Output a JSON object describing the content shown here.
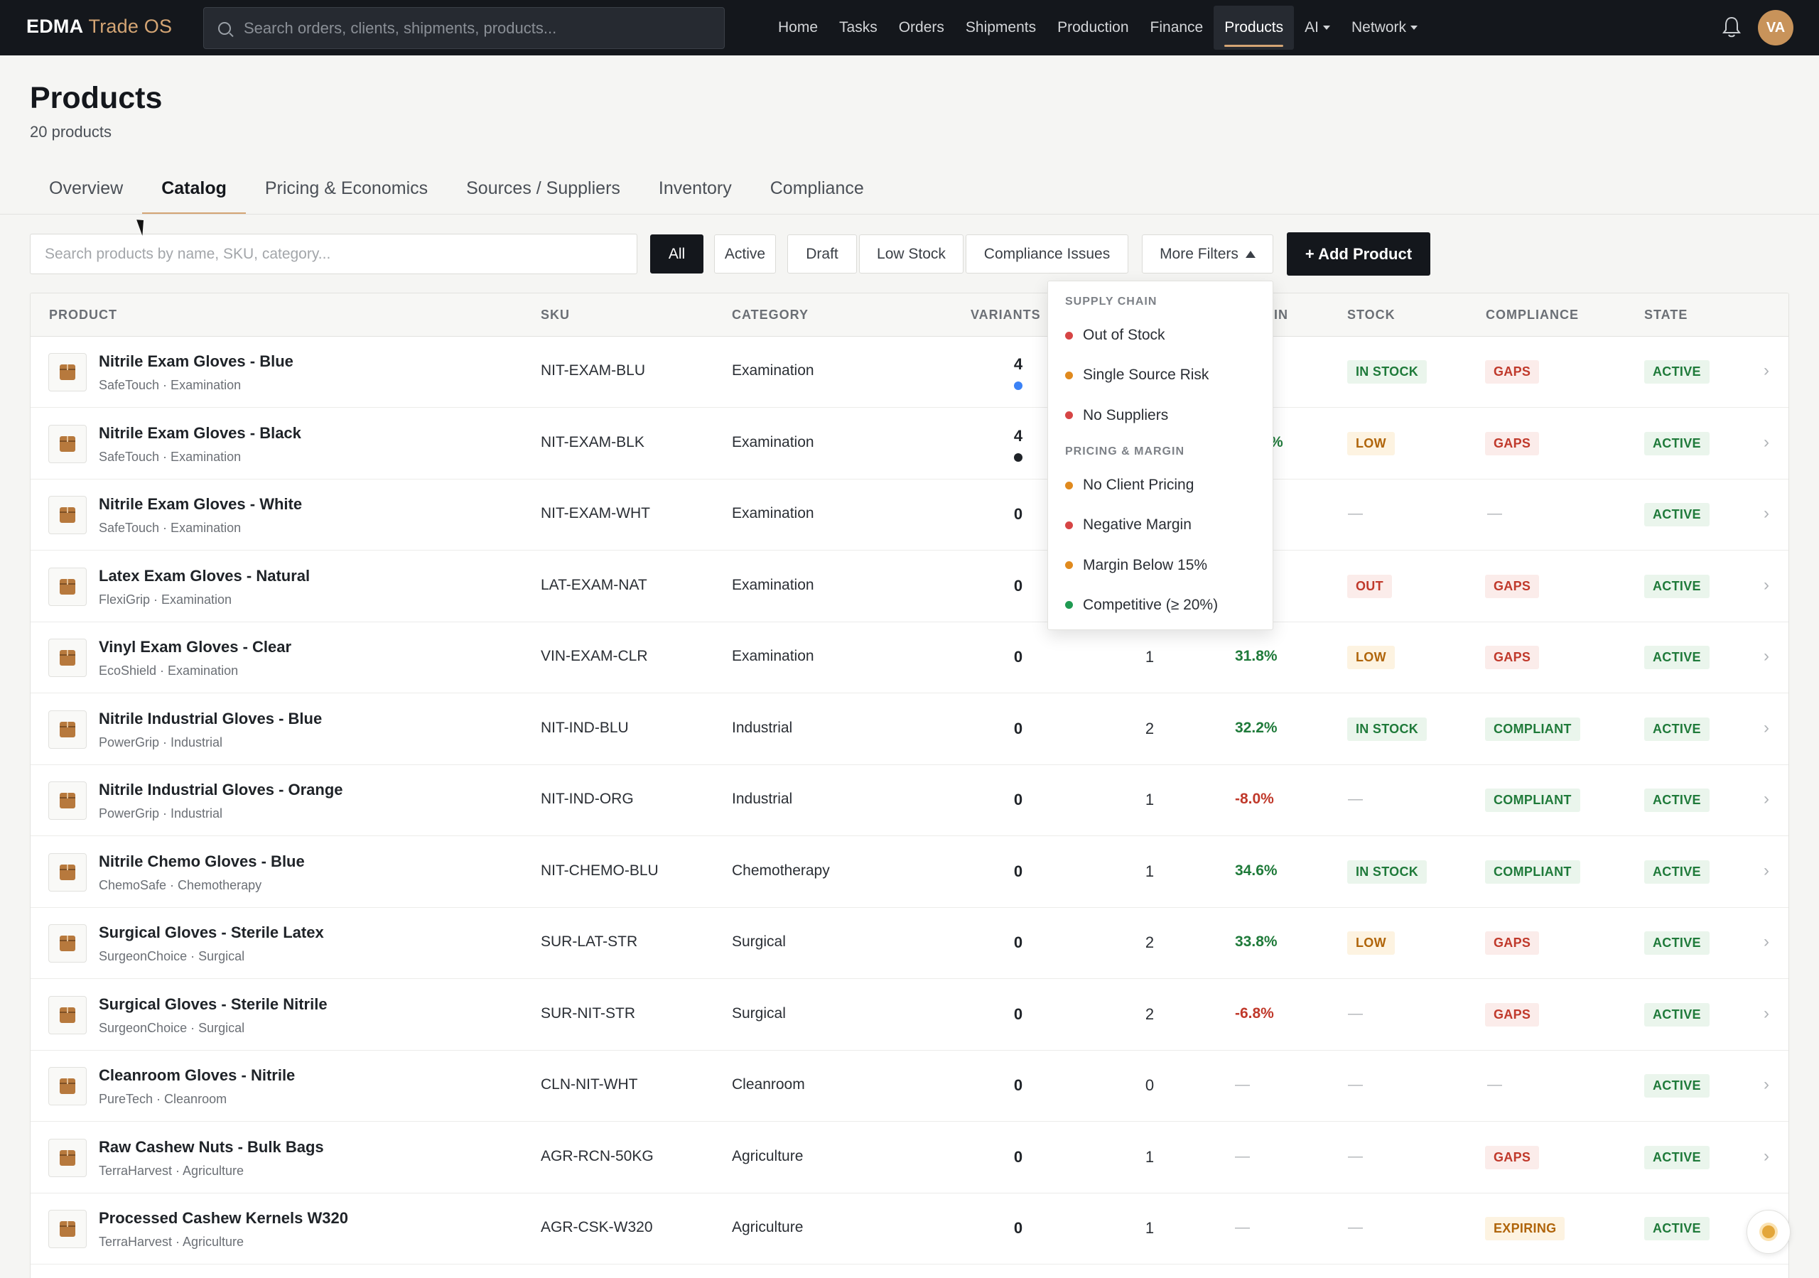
{
  "topbar": {
    "brand_main": "EDMA",
    "brand_accent": "Trade OS",
    "search_placeholder": "Search orders, clients, shipments, products...",
    "nav": [
      "Home",
      "Tasks",
      "Orders",
      "Shipments",
      "Production",
      "Finance",
      "Products",
      "AI",
      "Network"
    ],
    "active_nav": "Products",
    "avatar_initials": "VA"
  },
  "header": {
    "title": "Products",
    "subtitle": "20 products",
    "tabs": [
      "Overview",
      "Catalog",
      "Pricing & Economics",
      "Sources / Suppliers",
      "Inventory",
      "Compliance"
    ],
    "active_tab": "Catalog"
  },
  "filters": {
    "search_placeholder": "Search products by name, SKU, category...",
    "chips": [
      "All",
      "Active",
      "Draft",
      "Low Stock",
      "Compliance Issues"
    ],
    "active_chip": "All",
    "more_filters": "More Filters",
    "add_product": "+ Add Product"
  },
  "dropdown": {
    "supply_chain_header": "SUPPLY CHAIN",
    "supply_chain": [
      {
        "label": "Out of Stock",
        "color": "#d64545"
      },
      {
        "label": "Single Source Risk",
        "color": "#e08a1e"
      },
      {
        "label": "No Suppliers",
        "color": "#d64545"
      }
    ],
    "pricing_header": "PRICING & MARGIN",
    "pricing": [
      {
        "label": "No Client Pricing",
        "color": "#e08a1e"
      },
      {
        "label": "Negative Margin",
        "color": "#d64545"
      },
      {
        "label": "Margin Below 15%",
        "color": "#e08a1e"
      },
      {
        "label": "Competitive (≥ 20%)",
        "color": "#1f9a52"
      }
    ]
  },
  "table": {
    "headers": {
      "product": "PRODUCT",
      "sku": "SKU",
      "category": "CATEGORY",
      "variants": "VARIANTS",
      "margin": "IN",
      "stock": "STOCK",
      "compliance": "COMPLIANCE",
      "state": "STATE"
    },
    "rows": [
      {
        "name": "Nitrile Exam Gloves - Blue",
        "brand": "SafeTouch · Examination",
        "sku": "NIT-EXAM-BLU",
        "category": "Examination",
        "variants": "4",
        "vdot": "#3b82f6",
        "suppliers": "",
        "margin": "",
        "stock": "IN STOCK",
        "compliance": "GAPS",
        "state": "ACTIVE"
      },
      {
        "name": "Nitrile Exam Gloves - Black",
        "brand": "SafeTouch · Examination",
        "sku": "NIT-EXAM-BLK",
        "category": "Examination",
        "variants": "4",
        "vdot": "#1f2328",
        "suppliers": "",
        "margin": "%",
        "stock": "LOW",
        "compliance": "GAPS",
        "state": "ACTIVE"
      },
      {
        "name": "Nitrile Exam Gloves - White",
        "brand": "SafeTouch · Examination",
        "sku": "NIT-EXAM-WHT",
        "category": "Examination",
        "variants": "0",
        "vdot": "",
        "suppliers": "",
        "margin": "",
        "stock": "—",
        "compliance": "—",
        "state": "ACTIVE"
      },
      {
        "name": "Latex Exam Gloves - Natural",
        "brand": "FlexiGrip · Examination",
        "sku": "LAT-EXAM-NAT",
        "category": "Examination",
        "variants": "0",
        "vdot": "",
        "suppliers": "",
        "margin": "",
        "stock": "OUT",
        "compliance": "GAPS",
        "state": "ACTIVE"
      },
      {
        "name": "Vinyl Exam Gloves - Clear",
        "brand": "EcoShield · Examination",
        "sku": "VIN-EXAM-CLR",
        "category": "Examination",
        "variants": "0",
        "vdot": "",
        "suppliers": "1",
        "margin": "31.8%",
        "stock": "LOW",
        "compliance": "GAPS",
        "state": "ACTIVE"
      },
      {
        "name": "Nitrile Industrial Gloves - Blue",
        "brand": "PowerGrip · Industrial",
        "sku": "NIT-IND-BLU",
        "category": "Industrial",
        "variants": "0",
        "vdot": "",
        "suppliers": "2",
        "margin": "32.2%",
        "stock": "IN STOCK",
        "compliance": "COMPLIANT",
        "state": "ACTIVE"
      },
      {
        "name": "Nitrile Industrial Gloves - Orange",
        "brand": "PowerGrip · Industrial",
        "sku": "NIT-IND-ORG",
        "category": "Industrial",
        "variants": "0",
        "vdot": "",
        "suppliers": "1",
        "margin": "-8.0%",
        "stock": "—",
        "compliance": "COMPLIANT",
        "state": "ACTIVE"
      },
      {
        "name": "Nitrile Chemo Gloves - Blue",
        "brand": "ChemoSafe · Chemotherapy",
        "sku": "NIT-CHEMO-BLU",
        "category": "Chemotherapy",
        "variants": "0",
        "vdot": "",
        "suppliers": "1",
        "margin": "34.6%",
        "stock": "IN STOCK",
        "compliance": "COMPLIANT",
        "state": "ACTIVE"
      },
      {
        "name": "Surgical Gloves - Sterile Latex",
        "brand": "SurgeonChoice · Surgical",
        "sku": "SUR-LAT-STR",
        "category": "Surgical",
        "variants": "0",
        "vdot": "",
        "suppliers": "2",
        "margin": "33.8%",
        "stock": "LOW",
        "compliance": "GAPS",
        "state": "ACTIVE"
      },
      {
        "name": "Surgical Gloves - Sterile Nitrile",
        "brand": "SurgeonChoice · Surgical",
        "sku": "SUR-NIT-STR",
        "category": "Surgical",
        "variants": "0",
        "vdot": "",
        "suppliers": "2",
        "margin": "-6.8%",
        "stock": "—",
        "compliance": "GAPS",
        "state": "ACTIVE"
      },
      {
        "name": "Cleanroom Gloves - Nitrile",
        "brand": "PureTech · Cleanroom",
        "sku": "CLN-NIT-WHT",
        "category": "Cleanroom",
        "variants": "0",
        "vdot": "",
        "suppliers": "0",
        "margin": "—",
        "stock": "—",
        "compliance": "—",
        "state": "ACTIVE"
      },
      {
        "name": "Raw Cashew Nuts - Bulk Bags",
        "brand": "TerraHarvest · Agriculture",
        "sku": "AGR-RCN-50KG",
        "category": "Agriculture",
        "variants": "0",
        "vdot": "",
        "suppliers": "1",
        "margin": "—",
        "stock": "—",
        "compliance": "GAPS",
        "state": "ACTIVE"
      },
      {
        "name": "Processed Cashew Kernels W320",
        "brand": "TerraHarvest · Agriculture",
        "sku": "AGR-CSK-W320",
        "category": "Agriculture",
        "variants": "0",
        "vdot": "",
        "suppliers": "1",
        "margin": "—",
        "stock": "—",
        "compliance": "EXPIRING",
        "state": "ACTIVE"
      }
    ]
  },
  "colors": {
    "brand_accent": "#d4a574",
    "positive": "#1f7a3a",
    "negative": "#c0392b",
    "warning": "#b0650b"
  },
  "icons": {
    "search": "search-icon",
    "bell": "bell-icon",
    "product": "box-icon",
    "chevron": "chevron-right-icon",
    "theme": "sun-icon"
  }
}
